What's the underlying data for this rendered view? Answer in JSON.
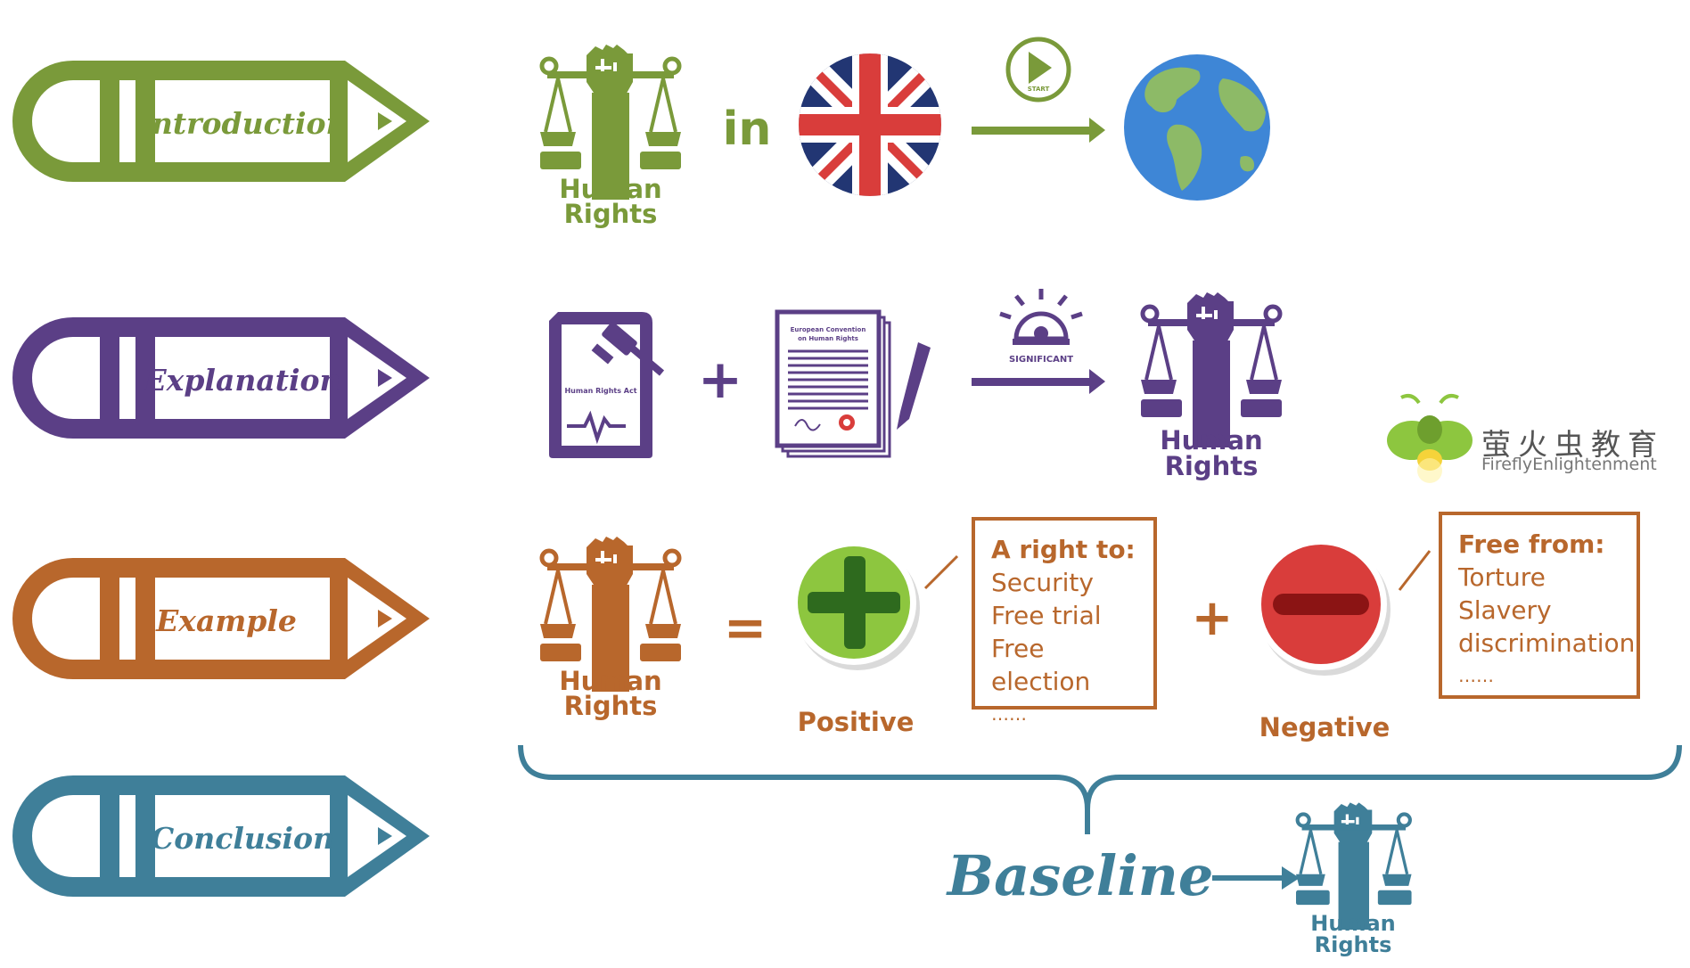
{
  "colors": {
    "green": "#7A9A3A",
    "purple": "#5B3F86",
    "orange": "#B8672C",
    "teal": "#3F7F99",
    "red": "#D93D3B",
    "lightgreen": "#8DC63F"
  },
  "steps": [
    {
      "label": "Introduction"
    },
    {
      "label": "Explanation"
    },
    {
      "label": "Example"
    },
    {
      "label": "Conclusion"
    }
  ],
  "row1": {
    "hr_line1": "Human",
    "hr_line2": "Rights",
    "connector": "in",
    "arrow_label": "START"
  },
  "row2": {
    "act_label": "Human Rights Act",
    "doc_title_1": "European Convention",
    "doc_title_2": "on Human Rights",
    "plus": "+",
    "arrow_label": "SIGNIFICANT",
    "hr_line1": "Human",
    "hr_line2": "Rights"
  },
  "row3": {
    "hr_line1": "Human",
    "hr_line2": "Rights",
    "equals": "=",
    "plus": "+",
    "positive_label": "Positive",
    "negative_label": "Negative",
    "positive_box": {
      "heading": "A right to:",
      "items": [
        "Security",
        "Free trial",
        "Free election",
        "……"
      ]
    },
    "negative_box": {
      "heading": "Free from:",
      "items": [
        "Torture",
        "Slavery",
        "discrimination",
        "……"
      ]
    }
  },
  "conclusion": {
    "baseline": "Baseline",
    "hr_line1": "Human",
    "hr_line2": "Rights"
  },
  "logo": {
    "cn": "萤火虫教育",
    "en": "FireflyEnlightenment"
  }
}
